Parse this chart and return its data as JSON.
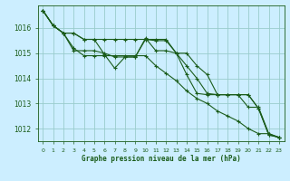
{
  "background_color": "#cceeff",
  "grid_color": "#99cccc",
  "line_color": "#1a5c1a",
  "title": "Graphe pression niveau de la mer (hPa)",
  "xlim": [
    -0.5,
    23.5
  ],
  "ylim": [
    1011.5,
    1016.9
  ],
  "yticks": [
    1012,
    1013,
    1014,
    1015,
    1016
  ],
  "xticks": [
    0,
    1,
    2,
    3,
    4,
    5,
    6,
    7,
    8,
    9,
    10,
    11,
    12,
    13,
    14,
    15,
    16,
    17,
    18,
    19,
    20,
    21,
    22,
    23
  ],
  "series": [
    [
      1016.7,
      1016.1,
      1015.8,
      1015.1,
      1015.1,
      1015.1,
      1015.0,
      1014.85,
      1014.85,
      1014.85,
      1015.6,
      1015.1,
      1015.1,
      1015.0,
      1014.15,
      1013.4,
      1013.35,
      1013.35,
      1013.35,
      1013.35,
      1012.85,
      1012.85,
      1011.8,
      1011.65
    ],
    [
      1016.7,
      1016.1,
      1015.8,
      1015.8,
      1015.55,
      1015.55,
      1014.95,
      1014.4,
      1014.85,
      1014.85,
      1015.55,
      1015.5,
      1015.5,
      1015.0,
      1014.5,
      1014.0,
      1013.4,
      1013.35,
      1013.35,
      1013.35,
      1013.35,
      1012.8,
      1011.75,
      1011.65
    ],
    [
      1016.7,
      1016.1,
      1015.8,
      1015.8,
      1015.55,
      1015.55,
      1015.55,
      1015.55,
      1015.55,
      1015.55,
      1015.55,
      1015.55,
      1015.55,
      1015.0,
      1015.0,
      1014.5,
      1014.15,
      1013.35,
      1013.35,
      1013.35,
      1013.35,
      1012.8,
      1011.75,
      1011.65
    ],
    [
      1016.7,
      1016.1,
      1015.8,
      1015.2,
      1014.9,
      1014.9,
      1014.9,
      1014.9,
      1014.9,
      1014.9,
      1014.9,
      1014.5,
      1014.2,
      1013.9,
      1013.5,
      1013.2,
      1013.0,
      1012.7,
      1012.5,
      1012.3,
      1012.0,
      1011.8,
      1011.8,
      1011.65
    ]
  ]
}
